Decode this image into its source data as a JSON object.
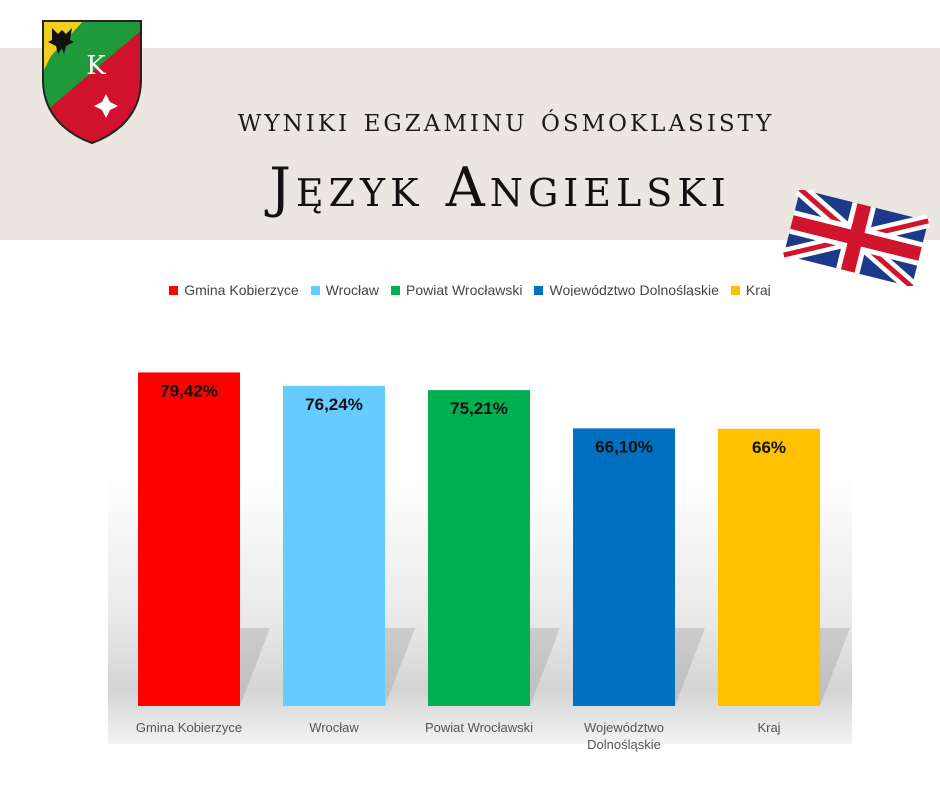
{
  "header": {
    "subtitle": "wyniki egzaminu ósmoklasisty",
    "title": "Język Angielski",
    "crest_letter": "K"
  },
  "colors": {
    "banner": "#ebe7e0",
    "Gmina Kobierzyce": "#ff0000",
    "Wrocław": "#66ccff",
    "Powiat Wrocławski": "#00b050",
    "Województwo Dolnośląskie": "#0070c0",
    "Kraj": "#ffc000"
  },
  "chart_data": {
    "type": "bar",
    "categories": [
      "Gmina Kobierzyce",
      "Wrocław",
      "Powiat Wrocławski",
      "Województwo Dolnośląskie",
      "Kraj"
    ],
    "category_labels": [
      [
        "Gmina Kobierzyce"
      ],
      [
        "Wrocław"
      ],
      [
        "Powiat Wrocławski"
      ],
      [
        "Województwo",
        "Dolnośląskie"
      ],
      [
        "Kraj"
      ]
    ],
    "values": [
      79.42,
      76.24,
      75.21,
      66.1,
      66
    ],
    "data_labels": [
      "79,42%",
      "76,24%",
      "75,21%",
      "66,10%",
      "66%"
    ],
    "colors": [
      "#ff0000",
      "#66ccff",
      "#00b050",
      "#0070c0",
      "#ffc000"
    ],
    "legend": [
      "Gmina Kobierzyce",
      "Wrocław",
      "Powiat Wrocławski",
      "Województwo Dolnośląskie",
      "Kraj"
    ],
    "legend_position": "top",
    "ylim": [
      0,
      100
    ],
    "grid": false,
    "title": "",
    "xlabel": "",
    "ylabel": ""
  }
}
